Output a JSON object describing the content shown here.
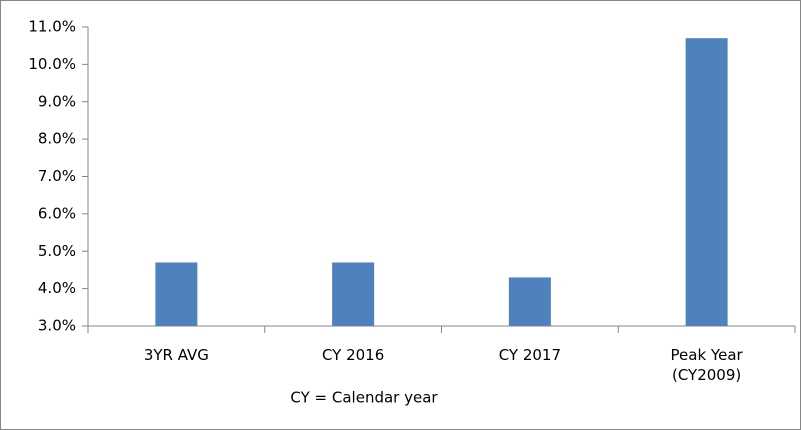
{
  "chart_data": {
    "type": "bar",
    "categories": [
      "3YR AVG",
      "CY 2016",
      "CY 2017",
      "Peak Year (CY2009)"
    ],
    "values": [
      4.7,
      4.7,
      4.3,
      10.7
    ],
    "color": "#4f81bd",
    "ylim": [
      3.0,
      11.0
    ],
    "yticks": [
      {
        "value": 3,
        "label": "3.0%"
      },
      {
        "value": 4,
        "label": "4.0%"
      },
      {
        "value": 5,
        "label": "5.0%"
      },
      {
        "value": 6,
        "label": "6.0%"
      },
      {
        "value": 7,
        "label": "7.0%"
      },
      {
        "value": 8,
        "label": "8.0%"
      },
      {
        "value": 9,
        "label": "9.0%"
      },
      {
        "value": 10,
        "label": "10.0%"
      },
      {
        "value": 11,
        "label": "11.0%"
      }
    ],
    "grid": false,
    "annotation": "CY = Calendar year"
  }
}
